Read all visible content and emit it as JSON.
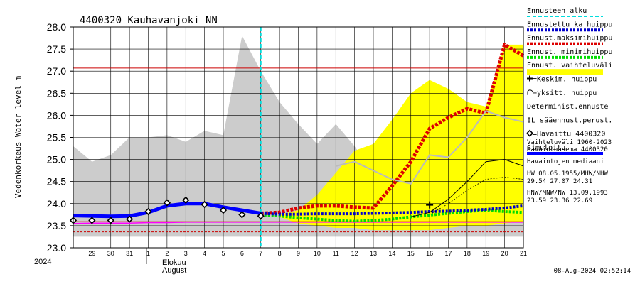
{
  "chart_data": {
    "type": "line",
    "title": "4400320 Kauhavanjoki NN",
    "ylabel": "Vedenkorkeus Water level m",
    "ylim": [
      23.0,
      28.0
    ],
    "yticks": [
      "28.0",
      "27.5",
      "27.0",
      "26.5",
      "26.0",
      "25.5",
      "25.0",
      "24.5",
      "24.0",
      "23.5",
      "23.0"
    ],
    "x_start": 28,
    "x_end": 21.9,
    "xtick_labels": [
      "29",
      "30",
      "31",
      "1",
      "2",
      "3",
      "4",
      "5",
      "6",
      "7",
      "8",
      "9",
      "10",
      "11",
      "12",
      "13",
      "14",
      "15",
      "16",
      "17",
      "18",
      "19",
      "20",
      "21"
    ],
    "year_label": "2024",
    "month_label_fi": "Elokuu",
    "month_label_en": "August",
    "forecast_start": 8.0,
    "timestamp": "08-Aug-2024 02:52:14",
    "hlines": [
      {
        "value": 27.07,
        "color": "#cc0000"
      },
      {
        "value": 24.31,
        "color": "#cc0000"
      },
      {
        "value": 23.59,
        "color": "#cc0000"
      },
      {
        "value": 23.36,
        "color": "#cc0000",
        "dashed": true
      }
    ],
    "series": [
      {
        "name": "Vaihteluväli 1960-2023",
        "kind": "area_hist",
        "color": "#cccccc",
        "x": [
          28,
          29,
          30,
          31,
          32,
          33,
          34,
          35,
          36,
          37,
          38,
          39,
          40,
          41,
          42,
          43,
          44,
          45,
          46,
          47,
          48,
          49,
          50,
          51,
          52
        ],
        "low": [
          23.25,
          23.25,
          23.25,
          23.25,
          23.25,
          23.25,
          23.25,
          23.25,
          23.25,
          23.25,
          23.25,
          23.25,
          23.25,
          23.25,
          23.25,
          23.25,
          23.25,
          23.25,
          23.25,
          23.25,
          23.25,
          23.25,
          23.25,
          23.25,
          23.25
        ],
        "high": [
          25.3,
          24.95,
          25.1,
          25.5,
          25.5,
          25.55,
          25.4,
          25.65,
          25.55,
          27.8,
          27.0,
          26.3,
          25.8,
          25.35,
          25.8,
          25.3,
          24.7,
          24.55,
          24.4,
          24.35,
          24.35,
          24.3,
          24.25,
          24.2,
          24.2
        ]
      },
      {
        "name": "Ennust. vaihteluväli",
        "kind": "area_forecast",
        "color": "#ffff00",
        "x": [
          39,
          40,
          41,
          42,
          43,
          44,
          45,
          46,
          47,
          48,
          49,
          50,
          51,
          52
        ],
        "low": [
          23.7,
          23.55,
          23.5,
          23.45,
          23.45,
          23.4,
          23.4,
          23.4,
          23.4,
          23.45,
          23.5,
          23.5,
          23.55,
          23.6
        ],
        "high": [
          23.75,
          23.85,
          24.2,
          24.7,
          25.2,
          25.35,
          25.9,
          26.5,
          26.8,
          26.6,
          26.3,
          26.2,
          27.6,
          27.6
        ]
      },
      {
        "name": "Ennust. maksimihuippu",
        "kind": "line",
        "color": "#dd0000",
        "width": 5,
        "dash": "4,2",
        "x": [
          38,
          39,
          40,
          41,
          42,
          43,
          44,
          45,
          46,
          47,
          48,
          49,
          50,
          51,
          52
        ],
        "y": [
          23.78,
          23.8,
          23.9,
          23.95,
          23.95,
          23.92,
          23.9,
          24.4,
          24.95,
          25.7,
          25.95,
          26.15,
          26.05,
          27.6,
          27.35
        ]
      },
      {
        "name": "Ennust. minimihuippu",
        "kind": "line",
        "color": "#00dd00",
        "width": 4,
        "dash": "3,2",
        "x": [
          38,
          39,
          40,
          41,
          42,
          43,
          44,
          45,
          46,
          47,
          48,
          49,
          50,
          51,
          52
        ],
        "y": [
          23.75,
          23.72,
          23.68,
          23.65,
          23.62,
          23.6,
          23.62,
          23.65,
          23.7,
          23.74,
          23.78,
          23.82,
          23.85,
          23.82,
          23.8
        ]
      },
      {
        "name": "Ennustettu ka huippu",
        "kind": "line",
        "color": "#0000cc",
        "width": 4,
        "dash": "3,2",
        "x": [
          38,
          39,
          40,
          41,
          42,
          43,
          44,
          45,
          46,
          47,
          48,
          49,
          50,
          51,
          52
        ],
        "y": [
          23.78,
          23.76,
          23.76,
          23.77,
          23.77,
          23.77,
          23.78,
          23.79,
          23.8,
          23.82,
          23.83,
          23.85,
          23.87,
          23.9,
          23.95
        ]
      },
      {
        "name": "Simuloitu",
        "kind": "line",
        "color": "#0000ff",
        "width": 5,
        "x": [
          28,
          29,
          30,
          31,
          32,
          33,
          34,
          35,
          36,
          37,
          38
        ],
        "y": [
          23.73,
          23.72,
          23.71,
          23.72,
          23.8,
          23.95,
          24.0,
          24.0,
          23.92,
          23.85,
          23.78
        ]
      },
      {
        "name": "Havaintojen mediaani",
        "kind": "line",
        "color": "#ff00ff",
        "width": 1.5,
        "x": [
          28,
          29,
          30,
          31,
          32,
          33,
          34,
          35,
          36,
          37,
          38,
          39,
          40,
          41,
          42,
          43,
          44,
          45,
          46,
          47,
          48,
          49,
          50,
          51,
          52
        ],
        "y": [
          23.55,
          23.56,
          23.56,
          23.56,
          23.57,
          23.57,
          23.58,
          23.58,
          23.58,
          23.58,
          23.58,
          23.58,
          23.58,
          23.58,
          23.58,
          23.58,
          23.58,
          23.58,
          23.58,
          23.58,
          23.58,
          23.58,
          23.58,
          23.58,
          23.58
        ]
      },
      {
        "name": "Determinist.ennuste",
        "kind": "line",
        "color": "#000000",
        "width": 1,
        "x": [
          46,
          47,
          48,
          49,
          50,
          51,
          52
        ],
        "y": [
          23.7,
          23.8,
          24.1,
          24.5,
          24.95,
          25.0,
          24.85
        ]
      },
      {
        "name": "IL sääennust.perust.",
        "kind": "line",
        "color": "#000000",
        "width": 0.8,
        "dash": "2,2",
        "x": [
          47,
          48,
          49,
          50,
          51,
          52
        ],
        "y": [
          23.75,
          24.0,
          24.3,
          24.55,
          24.6,
          24.55
        ]
      },
      {
        "name": "=yksitt. huippu",
        "kind": "line",
        "color": "#bbbbbb",
        "width": 2,
        "x": [
          42,
          43,
          44,
          45,
          46,
          47,
          48,
          49,
          50,
          51,
          52
        ],
        "y": [
          24.85,
          24.95,
          24.75,
          24.55,
          24.45,
          25.1,
          25.05,
          25.5,
          26.1,
          25.95,
          25.85
        ]
      }
    ],
    "observed": {
      "name": "=Havaittu 4400320",
      "x": [
        28,
        29,
        30,
        31,
        32,
        33,
        34,
        35,
        36,
        37,
        38
      ],
      "y": [
        23.62,
        23.62,
        23.62,
        23.65,
        23.82,
        24.02,
        24.08,
        23.98,
        23.85,
        23.75,
        23.72
      ]
    },
    "mean_peak": {
      "name": "=Keskim. huippu",
      "x": 47.0,
      "y": 23.97
    },
    "legend": {
      "placement": "right",
      "entries": [
        {
          "label": "Ennusteen alku",
          "color": "#00dddd",
          "style": "dash"
        },
        {
          "label": "Ennustettu ka huippu",
          "color": "#0000cc",
          "style": "dot"
        },
        {
          "label": "Ennust.maksimihuippu",
          "color": "#dd0000",
          "style": "dot"
        },
        {
          "label": "Ennust. minimihuippu",
          "color": "#00dd00",
          "style": "dot"
        },
        {
          "label": "Ennust. vaihteluväli",
          "color": "#ffff00",
          "style": "fill"
        },
        {
          "label": "=Keskim. huippu",
          "color": "#000000",
          "style": "plus"
        },
        {
          "label": "=yksitt. huippu",
          "color": "#000000",
          "style": "hook"
        },
        {
          "label": "Determinist.ennuste",
          "color": "#000000",
          "style": "none"
        },
        {
          "label": "IL sääennust.perust.",
          "color": "#000000",
          "style": "dash-thin"
        },
        {
          "label": "=Havaittu 4400320",
          "color": "#000000",
          "style": "diamond"
        },
        {
          "label": "Simuloitu",
          "color": "#0000ff",
          "style": "solid"
        }
      ],
      "notes": [
        "Vaihteluväli 1960-2023",
        "Havaintoasema 4400320",
        "Havaintojen mediaani",
        "HW 08.05.1955/MHW/NHW",
        "29.54 27.07 24.31",
        "HNW/MNW/NW 13.09.1993",
        "23.59 23.36 22.69"
      ]
    }
  }
}
